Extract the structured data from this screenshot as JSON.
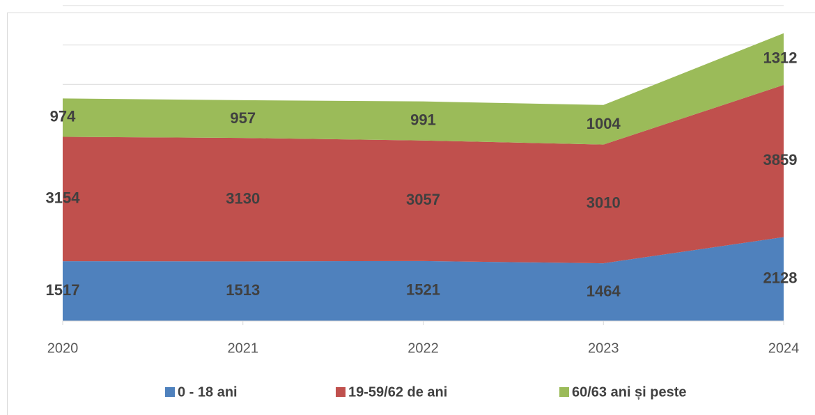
{
  "chart_data": {
    "type": "stacked_area",
    "categories": [
      "2020",
      "2021",
      "2022",
      "2023",
      "2024"
    ],
    "series": [
      {
        "name": "0 - 18 ani",
        "color": "#4f81bd",
        "values": [
          1517,
          1513,
          1521,
          1464,
          2128
        ]
      },
      {
        "name": "19-59/62 de ani",
        "color": "#c0504d",
        "values": [
          3154,
          3130,
          3057,
          3010,
          3859
        ]
      },
      {
        "name": "60/63 ani și peste",
        "color": "#9bbb59",
        "values": [
          974,
          957,
          991,
          1004,
          1312
        ]
      }
    ],
    "ylim": [
      0,
      8000
    ],
    "yticks": [
      0,
      1000,
      2000,
      3000,
      4000,
      5000,
      6000,
      7000,
      8000
    ],
    "grid": true,
    "legend": "bottom"
  }
}
